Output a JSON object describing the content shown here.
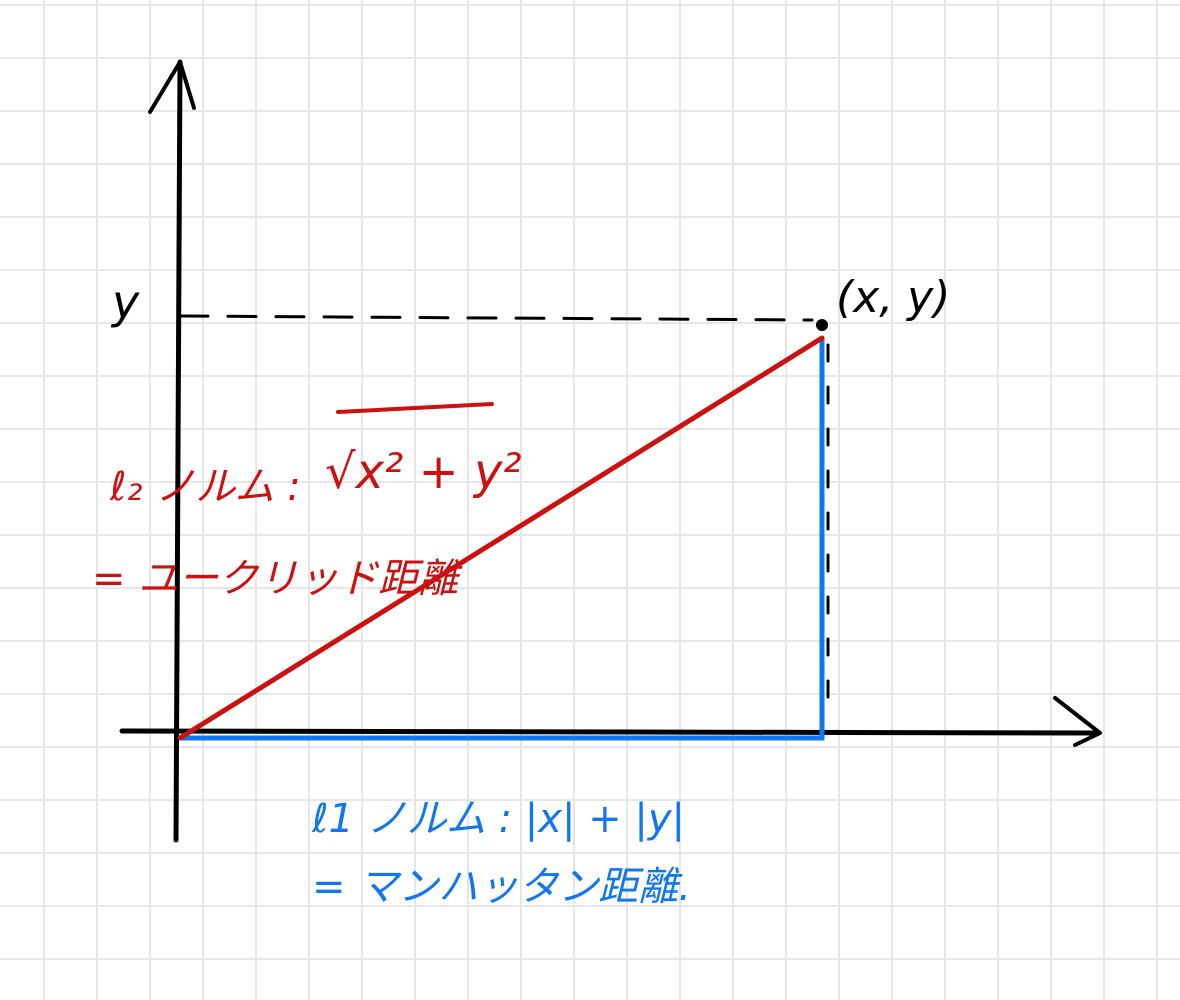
{
  "colors": {
    "grid": "#e6e6e6",
    "ink": "#000000",
    "euclid": "#cc1111",
    "manhattan": "#1177ee"
  },
  "labels": {
    "y_axis": "y",
    "point": "(x, y)",
    "l2_lhs": "ℓ₂ ノルム :",
    "l2_rhs": "√x² + y²",
    "l2_name": "= ユークリッド距離",
    "l1_formula": "ℓ1 ノルム : |x| + |y|",
    "l1_name": "= マンハッタン距離."
  }
}
